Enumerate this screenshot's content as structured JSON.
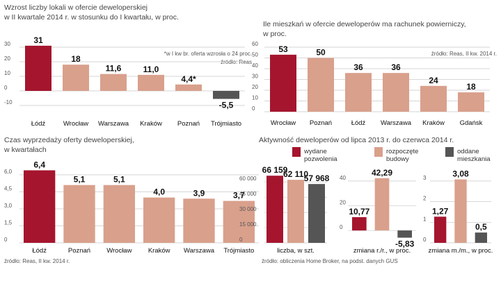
{
  "chart_data": [
    {
      "type": "bar",
      "title": "Wzrost liczby lokali w ofercie deweloperskiej",
      "subtitle": "w II kwartale 2014 r. w stosunku do I kwartału, w proc.",
      "categories": [
        "Łódź",
        "Wrocław",
        "Warszawa",
        "Kraków",
        "Poznań",
        "Trójmiasto"
      ],
      "values": [
        31,
        18,
        11.6,
        11.0,
        4.4,
        -5.5
      ],
      "value_labels": [
        "31",
        "18",
        "11,6",
        "11,0",
        "4,4*",
        "-5,5"
      ],
      "yticks": [
        "30",
        "20",
        "10",
        "0",
        "-10"
      ],
      "ylim": [
        -10,
        30
      ],
      "note": "*w I kw br. oferta wzrosła o 24 proc.",
      "source": "źródło: Reas"
    },
    {
      "type": "bar",
      "title": "Ile mieszkań w ofercie deweloperów ma rachunek powierniczy,",
      "subtitle": "w proc.",
      "categories": [
        "Wrocław",
        "Poznań",
        "Łódź",
        "Warszawa",
        "Kraków",
        "Gdańsk"
      ],
      "values": [
        53,
        50,
        36,
        36,
        24,
        18
      ],
      "value_labels": [
        "53",
        "50",
        "36",
        "36",
        "24",
        "18"
      ],
      "yticks": [
        "60",
        "50",
        "40",
        "30",
        "20",
        "10",
        "0"
      ],
      "ylim": [
        0,
        60
      ],
      "source": "źródło: Reas, II kw. 2014 r."
    },
    {
      "type": "bar",
      "title": "Czas wyprzedaży oferty deweloperskiej,",
      "subtitle": "w kwartałach",
      "categories": [
        "Łódź",
        "Poznań",
        "Wrocław",
        "Kraków",
        "Warszawa",
        "Trójmiasto"
      ],
      "values": [
        6.4,
        5.1,
        5.1,
        4.0,
        3.9,
        3.7
      ],
      "value_labels": [
        "6,4",
        "5,1",
        "5,1",
        "4,0",
        "3,9",
        "3,7"
      ],
      "yticks": [
        "6,0",
        "4,5",
        "3,0",
        "1,5",
        "0"
      ],
      "ylim": [
        0,
        6.0
      ],
      "source": "źródło: Reas, II kw. 2014 r."
    },
    {
      "type": "bar",
      "title": "Aktywność deweloperów od lipca 2013 r. do czerwca 2014 r.",
      "legend": [
        "wydane pozwolenia",
        "rozpoczęte budowy",
        "oddane mieszkania"
      ],
      "panels": [
        {
          "xlabel": "liczba, w szt.",
          "values": [
            66159,
            62110,
            57968
          ],
          "value_labels": [
            "66 159",
            "62 110",
            "57 968"
          ],
          "yticks": [
            "60 000",
            "45 000",
            "30 000",
            "15 000",
            "0"
          ],
          "ylim": [
            0,
            67000
          ]
        },
        {
          "xlabel": "zmiana r./r., w proc.",
          "values": [
            10.77,
            42.29,
            -5.83
          ],
          "value_labels": [
            "10,77",
            "42,29",
            "-5,83"
          ],
          "yticks": [
            "40",
            "20",
            "0"
          ],
          "ylim": [
            -10,
            45
          ]
        },
        {
          "xlabel": "zmiana m./m., w proc.",
          "values": [
            1.27,
            3.08,
            0.5
          ],
          "value_labels": [
            "1,27",
            "3,08",
            "0,5"
          ],
          "yticks": [
            "3",
            "2",
            "1",
            "0"
          ],
          "ylim": [
            0,
            3.3
          ]
        }
      ],
      "source": "źródło: obliczenia Home Broker, na podst. danych GUS"
    }
  ],
  "colors": {
    "highlight": "#a5152e",
    "bar": "#d9a08c",
    "neutral": "#555555",
    "grid": "#c8c8c8",
    "text": "#333333"
  }
}
